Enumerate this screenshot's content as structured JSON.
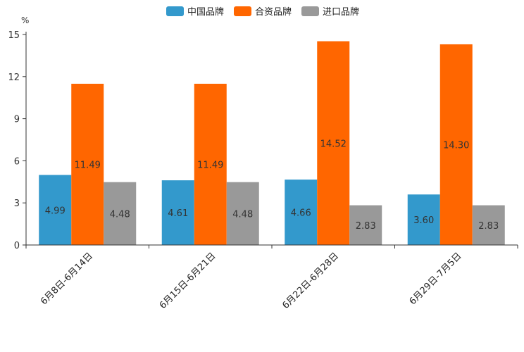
{
  "chart_data": {
    "type": "bar",
    "title": "",
    "unit": "%",
    "xlabel": "",
    "ylabel": "%",
    "ylim": [
      0,
      15
    ],
    "yticks": [
      0,
      3,
      6,
      9,
      12,
      15
    ],
    "grid": false,
    "legend_position": "top-center",
    "categories": [
      "6月8日-6月14日",
      "6月15日-6月21日",
      "6月22日-6月28日",
      "6月29日-7月5日"
    ],
    "series": [
      {
        "name": "中国品牌",
        "color": "#3399cc",
        "values": [
          4.99,
          4.61,
          4.66,
          3.6
        ],
        "labels": [
          "4.99",
          "4.61",
          "4.66",
          "3.60"
        ]
      },
      {
        "name": "合资品牌",
        "color": "#ff6600",
        "values": [
          11.49,
          11.49,
          14.52,
          14.3
        ],
        "labels": [
          "11.49",
          "11.49",
          "14.52",
          "14.30"
        ]
      },
      {
        "name": "进口品牌",
        "color": "#999999",
        "values": [
          4.48,
          4.48,
          2.83,
          2.83
        ],
        "labels": [
          "4.48",
          "4.48",
          "2.83",
          "2.83"
        ]
      }
    ]
  }
}
